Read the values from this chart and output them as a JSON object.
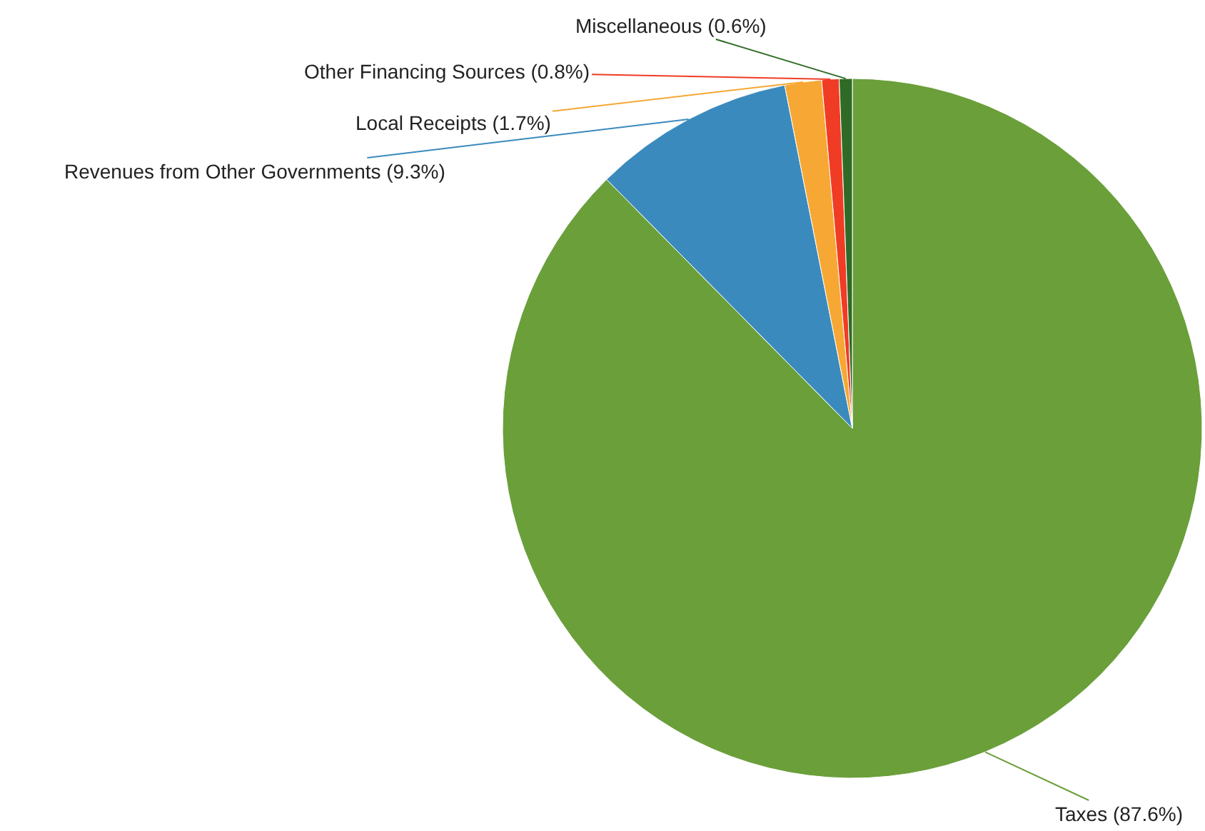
{
  "chart_data": {
    "type": "pie",
    "categories": [
      "Taxes (87.6%)",
      "Revenues from Other Governments (9.3%)",
      "Local Receipts (1.7%)",
      "Other Financing Sources (0.8%)",
      "Miscellaneous (0.6%)"
    ],
    "values": [
      87.6,
      9.3,
      1.7,
      0.8,
      0.6
    ],
    "colors": [
      "#6a9f3a",
      "#3a8abd",
      "#f7a733",
      "#f03c24",
      "#2f6b25"
    ],
    "legend": false
  }
}
